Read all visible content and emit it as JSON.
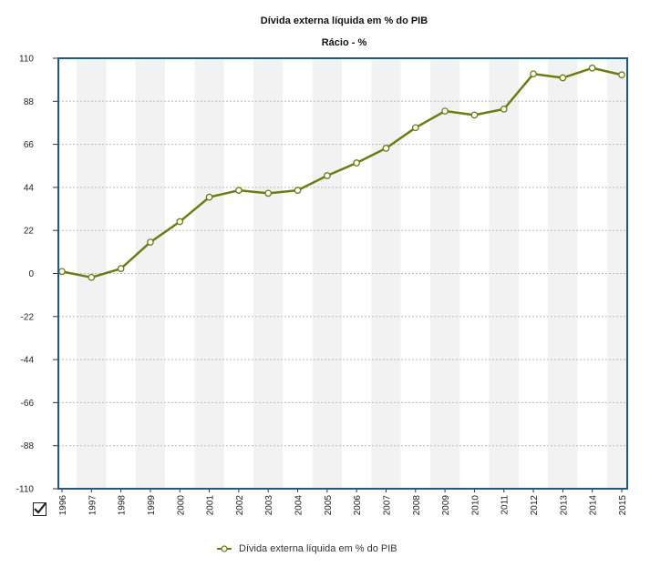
{
  "chart_data": {
    "type": "line",
    "title": "Dívida externa líquida em % do PIB",
    "subtitle": "Rácio - %",
    "xlabel": "",
    "ylabel": "",
    "x": [
      "1996",
      "1997",
      "1998",
      "1999",
      "2000",
      "2001",
      "2002",
      "2003",
      "2004",
      "2005",
      "2006",
      "2007",
      "2008",
      "2009",
      "2010",
      "2011",
      "2012",
      "2013",
      "2014",
      "2015"
    ],
    "ylim": [
      -110,
      110
    ],
    "yticks": [
      110,
      88,
      66,
      44,
      22,
      0,
      -22,
      -44,
      -66,
      -88,
      -110
    ],
    "grid": true,
    "legend_position": "bottom",
    "series": [
      {
        "name": "Dívida externa líquida em % do PIB",
        "color": "#6b7d12",
        "values": [
          1,
          -2,
          2.5,
          16,
          26.5,
          39,
          42.5,
          41,
          42.5,
          50,
          56.5,
          64,
          74.5,
          83,
          81,
          84,
          102,
          100,
          105,
          101.5
        ]
      }
    ]
  },
  "controls": {
    "toggle_icon": "checkbox-checked-icon"
  },
  "colors": {
    "plot_border": "#1f5a84",
    "band_shade": "#f2f2f2",
    "grid": "#bbbbbb",
    "line": "#6b7d12"
  }
}
